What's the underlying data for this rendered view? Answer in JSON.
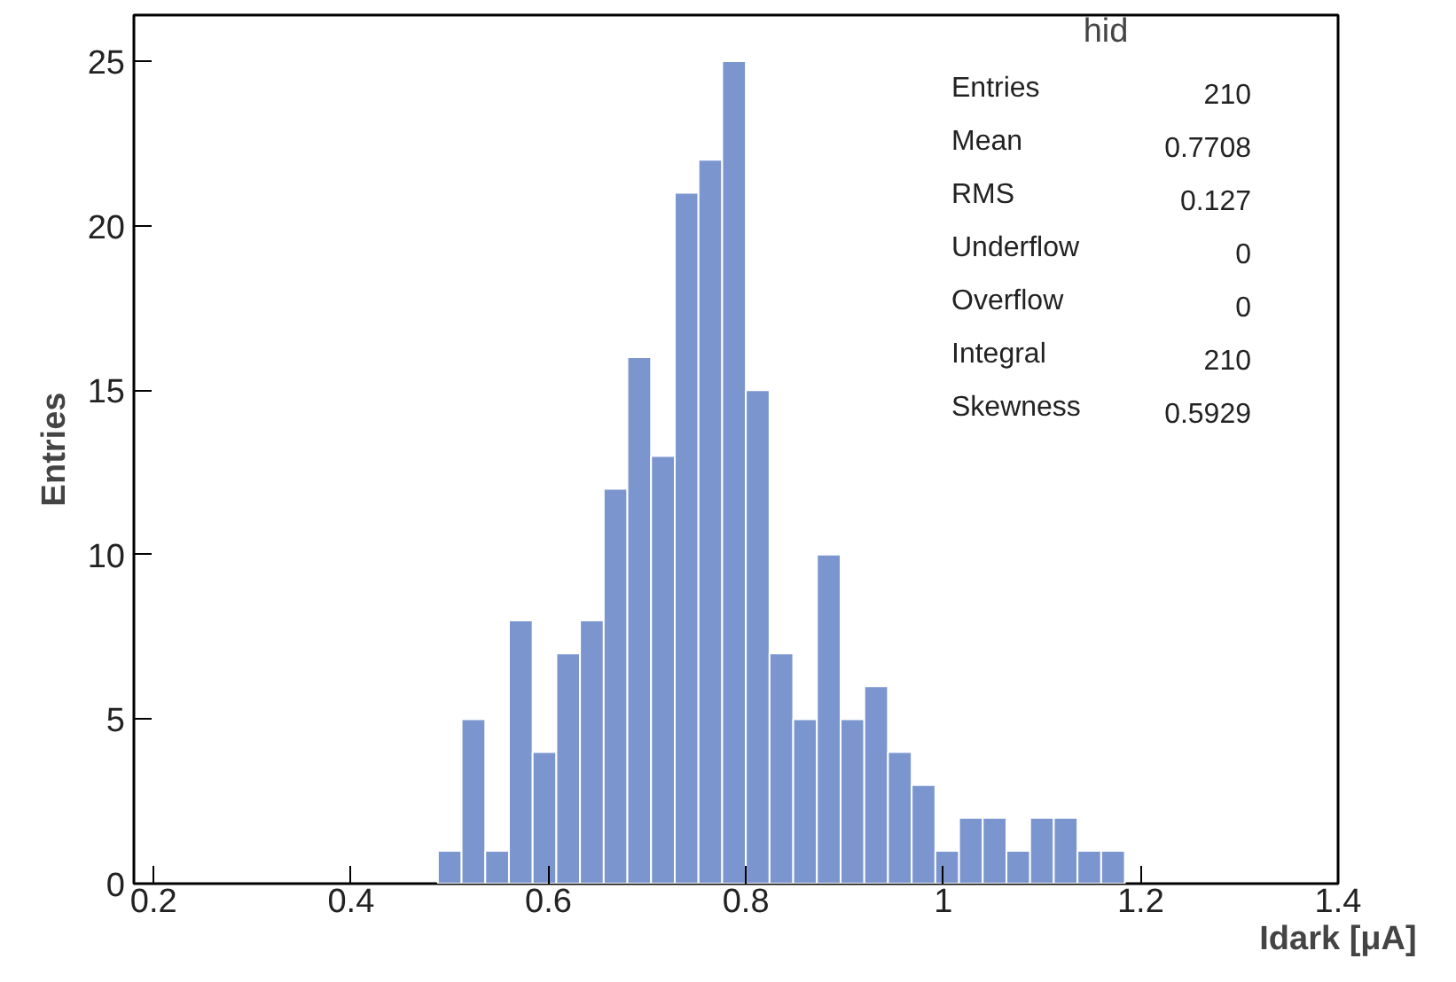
{
  "chart_data": {
    "type": "histogram",
    "title": "hid",
    "xlabel": "Idark [μA]",
    "ylabel": "Entries",
    "bins": [
      0.488,
      0.512,
      0.536,
      0.56,
      0.584,
      0.608,
      0.632,
      0.656,
      0.68,
      0.704,
      0.728,
      0.752,
      0.776,
      0.8,
      0.824,
      0.848,
      0.872,
      0.896,
      0.92,
      0.944,
      0.968,
      0.992,
      1.016,
      1.04,
      1.064,
      1.088,
      1.112,
      1.136,
      1.16,
      1.184
    ],
    "values": [
      1,
      5,
      1,
      8,
      4,
      7,
      8,
      12,
      16,
      13,
      21,
      22,
      25,
      15,
      7,
      5,
      10,
      5,
      6,
      4,
      3,
      1,
      2,
      2,
      1,
      2,
      2,
      1,
      1
    ],
    "color": "#7b96cf",
    "xlim": [
      0.18,
      1.4
    ],
    "ylim": [
      0,
      26.4
    ],
    "xticks": [
      0.2,
      0.4,
      0.6,
      0.8,
      1,
      1.2,
      1.4
    ],
    "yticks": [
      0,
      5,
      10,
      15,
      20,
      25
    ],
    "annotations": [
      "Entries 210",
      "Mean 0.7708",
      "RMS 0.127",
      "Underflow 0",
      "Overflow 0",
      "Integral 210",
      "Skewness 0.5929"
    ],
    "grid": false
  }
}
